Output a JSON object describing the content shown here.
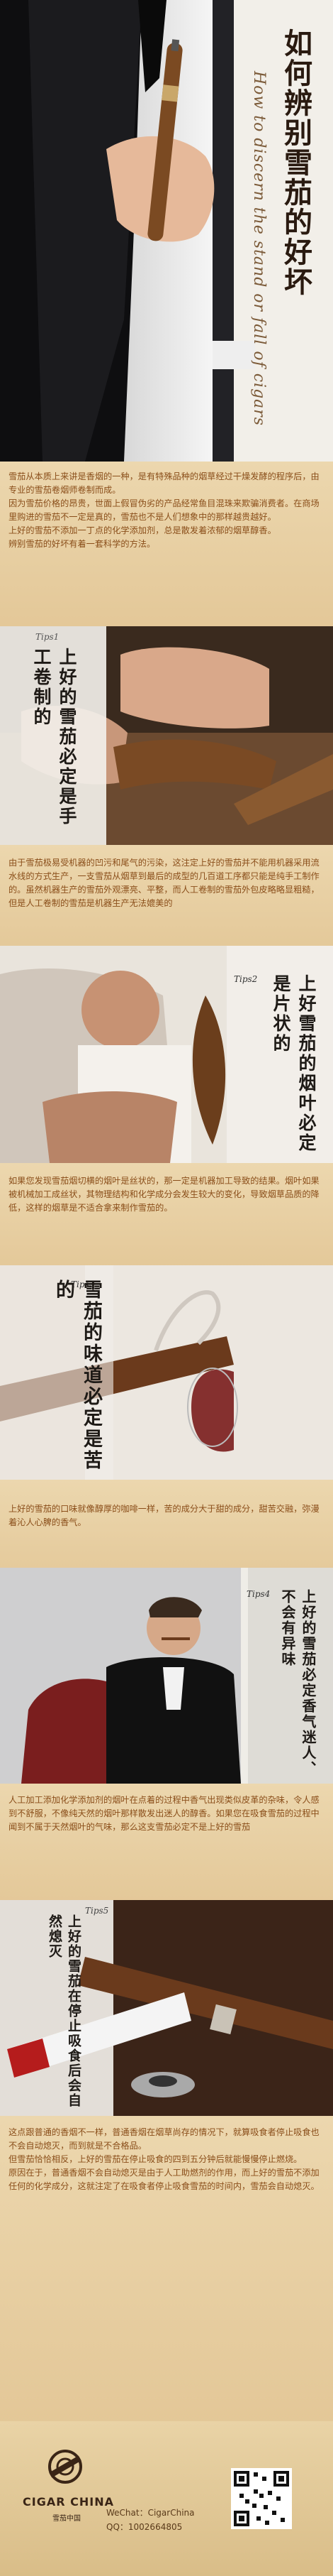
{
  "hero": {
    "title": "如何辨别雪茄的好坏",
    "subtitle": "How to discern the stand or fall of cigars"
  },
  "intro": {
    "paragraphs": [
      "雪茄从本质上来讲是香烟的一种，是有特殊品种的烟草经过干燥发酵的程序后，由专业的雪茄卷烟师卷制而成。",
      "因为雪茄价格的昂贵，世面上假冒伪劣的产品经常鱼目混珠来欺骗消费者。在商场里购进的雪茄不一定是真的，雪茄也不是人们想象中的那样越贵越好。",
      "上好的雪茄不添加一丁点的化学添加剂，总是散发着浓郁的烟草醇香。",
      "辨别雪茄的好坏有着一套科学的方法。"
    ]
  },
  "sections": [
    {
      "tag": "Tips1",
      "title": "上好的雪茄必定是手工卷制的",
      "paragraphs": [
        "由于雪茄极易受机器的凹污和尾气的污染，这注定上好的雪茄并不能用机器采用流水线的方式生产，一支雪茄从烟草到最后的成型的几百道工序都只能是纯手工制作的。虽然机器生产的雪茄外观漂亮、平整，而人工卷制的雪茄外包皮略略显粗糙，但是人工卷制的雪茄是机器生产无法媲美的"
      ]
    },
    {
      "tag": "Tips2",
      "title": "上好雪茄的烟叶必定是片状的",
      "paragraphs": [
        "如果您发现雪茄烟切横的烟叶是丝状的，那一定是机器加工导致的结果。烟叶如果被机械加工成丝状，其物理结构和化学成分会发生较大的变化，导致烟草品质的降低，这样的烟草是不适合拿来制作雪茄的。"
      ]
    },
    {
      "tag": "Tips3",
      "title": "雪茄的味道必定是苦的",
      "paragraphs": [
        "上好的雪茄的口味就像醇厚的咖啡一样，苦的成分大于甜的成分，甜苦交融，弥漫着沁人心脾的香气。"
      ]
    },
    {
      "tag": "Tips4",
      "title": "上好的雪茄必定香气迷人、不会有异味",
      "paragraphs": [
        "人工加工添加化学添加剂的烟叶在点着的过程中香气出现类似皮革的杂味，令人感到不舒服，不像纯天然的烟叶那样散发出迷人的醇香。如果您在吸食雪茄的过程中闻到不属于天然烟叶的气味，那么这支雪茄必定不是上好的雪茄"
      ]
    },
    {
      "tag": "Tips5",
      "title": "上好的雪茄在停止吸食后会自然熄灭",
      "paragraphs": [
        "这点跟普通的香烟不一样，普通香烟在烟草尚存的情况下，就算吸食者停止吸食也不会自动熄灭，而到就是不合格品。",
        "但雪茄恰恰相反，上好的雪茄在停止吸食的四到五分钟后就能慢慢停止燃烧。",
        "原因在于，普通香烟不会自动熄灭是由于人工助燃剂的作用，而上好的雪茄不添加任何的化学成分，这就注定了在吸食者停止吸食雪茄的时间内，雪茄会自动熄灭。"
      ]
    }
  ],
  "footer": {
    "logo_text": "CIGAR CHINA",
    "logo_sub": "雪茄中国",
    "wechat": "WeChat：CigarChina",
    "qq": "QQ：1002664805",
    "qr_label": "qr-code"
  }
}
